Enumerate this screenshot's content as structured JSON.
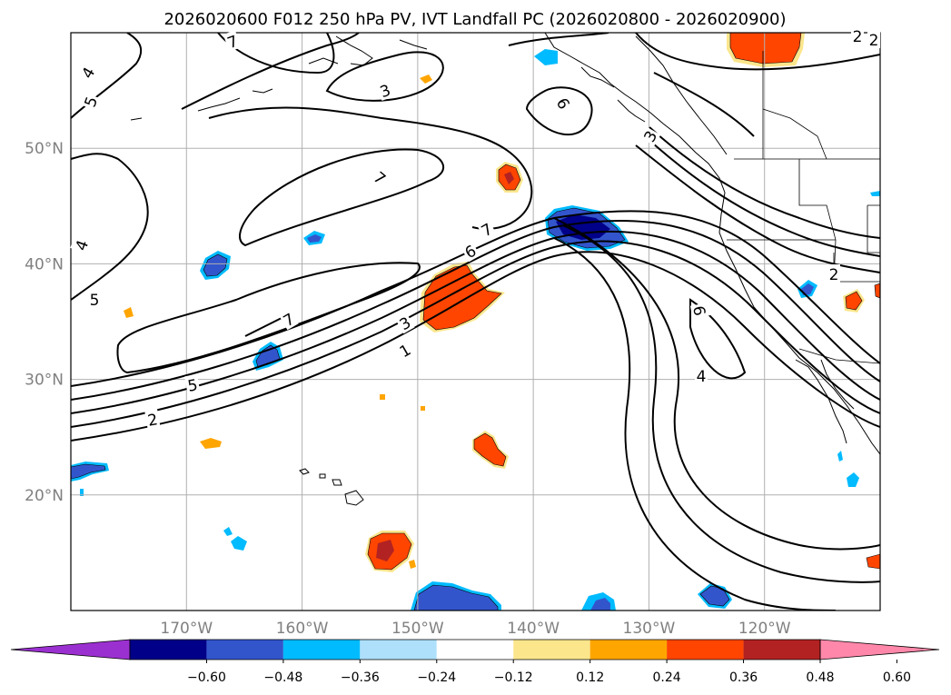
{
  "chart_data": {
    "type": "map-contour",
    "title": "2026020600 F012 250 hPa PV, IVT Landfall PC (2026020800 - 2026020900)",
    "grid": true,
    "lon_range": [
      180,
      110
    ],
    "lat_range": [
      10,
      60
    ],
    "x_ticks": [
      {
        "value": 170,
        "label": "170°W"
      },
      {
        "value": 160,
        "label": "160°W"
      },
      {
        "value": 150,
        "label": "150°W"
      },
      {
        "value": 140,
        "label": "140°W"
      },
      {
        "value": 130,
        "label": "130°W"
      },
      {
        "value": 120,
        "label": "120°W"
      }
    ],
    "y_ticks": [
      {
        "value": 50,
        "label": "50°N"
      },
      {
        "value": 40,
        "label": "40°N"
      },
      {
        "value": 30,
        "label": "30°N"
      },
      {
        "value": 20,
        "label": "20°N"
      }
    ],
    "colorbar": {
      "levels": [
        -0.6,
        -0.48,
        -0.36,
        -0.24,
        -0.12,
        0.12,
        0.24,
        0.36,
        0.48,
        0.6
      ],
      "tick_labels": [
        "−0.60",
        "−0.48",
        "−0.36",
        "−0.24",
        "−0.12",
        "0.12",
        "0.24",
        "0.36",
        "0.48",
        "0.60"
      ],
      "colors": [
        "#9b30d0",
        "#000088",
        "#3355cc",
        "#00bbff",
        "#aee0fb",
        "#ffffff",
        "#fbe68c",
        "#ffa500",
        "#ff4500",
        "#b22222",
        "#ff88aa"
      ],
      "extend": "both"
    },
    "contour_labels": [
      "7",
      "4",
      "5",
      "3",
      "6",
      "3",
      "7",
      "4",
      "7",
      "6",
      "5",
      "7",
      "3",
      "2",
      "1",
      "5",
      "2",
      "6",
      "4",
      "2",
      "2"
    ],
    "shaded_regions": [
      {
        "lon": 145.5,
        "lat": 37.5,
        "value": 0.42
      },
      {
        "lon": 141.5,
        "lat": 47.5,
        "value": 0.42
      },
      {
        "lon": 143.5,
        "lat": 24.0,
        "value": 0.4
      },
      {
        "lon": 152.5,
        "lat": 15.5,
        "value": 0.5
      },
      {
        "lon": 122.0,
        "lat": 58.5,
        "value": 0.4
      },
      {
        "lon": 115.5,
        "lat": 37.0,
        "value": 0.42
      },
      {
        "lon": 135.5,
        "lat": 43.0,
        "value": -0.55
      },
      {
        "lon": 147.5,
        "lat": 11.0,
        "value": -0.4
      },
      {
        "lon": 125.5,
        "lat": 11.5,
        "value": -0.4
      },
      {
        "lon": 166.5,
        "lat": 40.0,
        "value": -0.4
      },
      {
        "lon": 164.0,
        "lat": 32.0,
        "value": -0.4
      },
      {
        "lon": 178.0,
        "lat": 22.0,
        "value": -0.4
      }
    ]
  }
}
